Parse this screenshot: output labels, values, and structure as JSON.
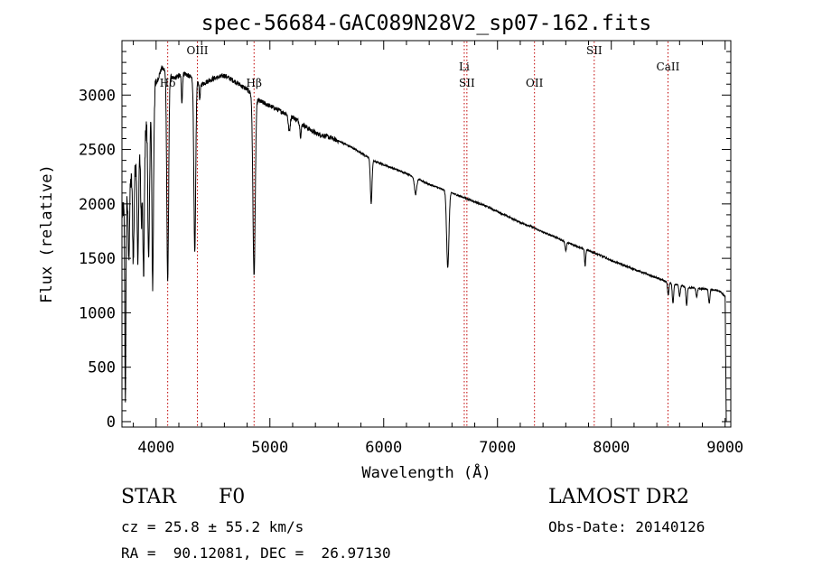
{
  "chart_data": {
    "type": "line",
    "title": "spec-56684-GAC089N28V2_sp07-162.fits",
    "xlabel": "Wavelength (Å)",
    "ylabel": "Flux (relative)",
    "xlim": [
      3700,
      9050
    ],
    "ylim": [
      -50,
      3500
    ],
    "xticks": [
      4000,
      5000,
      6000,
      7000,
      8000,
      9000
    ],
    "yticks": [
      0,
      500,
      1000,
      1500,
      2000,
      2500,
      3000
    ],
    "grid": false,
    "series": [
      {
        "name": "flux",
        "continuum": [
          [
            3700,
            1900
          ],
          [
            3760,
            2150
          ],
          [
            3820,
            2350
          ],
          [
            3880,
            2600
          ],
          [
            3950,
            2850
          ],
          [
            4000,
            3100
          ],
          [
            4050,
            3250
          ],
          [
            4150,
            3150
          ],
          [
            4250,
            3200
          ],
          [
            4400,
            3100
          ],
          [
            4500,
            3150
          ],
          [
            4600,
            3180
          ],
          [
            4700,
            3120
          ],
          [
            4800,
            3050
          ],
          [
            4900,
            2950
          ],
          [
            5000,
            2900
          ],
          [
            5100,
            2850
          ],
          [
            5200,
            2800
          ],
          [
            5300,
            2720
          ],
          [
            5400,
            2650
          ],
          [
            5500,
            2620
          ],
          [
            5600,
            2580
          ],
          [
            5700,
            2530
          ],
          [
            5800,
            2470
          ],
          [
            5900,
            2400
          ],
          [
            6000,
            2360
          ],
          [
            6100,
            2320
          ],
          [
            6200,
            2280
          ],
          [
            6300,
            2230
          ],
          [
            6400,
            2180
          ],
          [
            6500,
            2140
          ],
          [
            6600,
            2100
          ],
          [
            6700,
            2060
          ],
          [
            6800,
            2020
          ],
          [
            6900,
            1980
          ],
          [
            7000,
            1930
          ],
          [
            7100,
            1880
          ],
          [
            7200,
            1830
          ],
          [
            7300,
            1790
          ],
          [
            7400,
            1740
          ],
          [
            7500,
            1700
          ],
          [
            7600,
            1650
          ],
          [
            7700,
            1610
          ],
          [
            7800,
            1570
          ],
          [
            7900,
            1530
          ],
          [
            8000,
            1480
          ],
          [
            8100,
            1440
          ],
          [
            8200,
            1400
          ],
          [
            8300,
            1360
          ],
          [
            8400,
            1320
          ],
          [
            8500,
            1280
          ],
          [
            8600,
            1250
          ],
          [
            8700,
            1230
          ],
          [
            8800,
            1220
          ],
          [
            8900,
            1210
          ],
          [
            8950,
            1200
          ],
          [
            9000,
            1150
          ],
          [
            9010,
            0
          ]
        ],
        "absorption_lines": [
          {
            "center": 3730,
            "depth": 1800,
            "width": 5
          },
          {
            "center": 3760,
            "depth": 650,
            "width": 6
          },
          {
            "center": 3800,
            "depth": 800,
            "width": 6
          },
          {
            "center": 3840,
            "depth": 1000,
            "width": 6
          },
          {
            "center": 3870,
            "depth": 700,
            "width": 6
          },
          {
            "center": 3890,
            "depth": 1300,
            "width": 7
          },
          {
            "center": 3935,
            "depth": 1350,
            "width": 7
          },
          {
            "center": 3970,
            "depth": 1700,
            "width": 7
          },
          {
            "center": 4102,
            "depth": 1900,
            "width": 8
          },
          {
            "center": 4227,
            "depth": 250,
            "width": 5
          },
          {
            "center": 4340,
            "depth": 1600,
            "width": 8
          },
          {
            "center": 4384,
            "depth": 150,
            "width": 5
          },
          {
            "center": 4861,
            "depth": 1650,
            "width": 10
          },
          {
            "center": 5170,
            "depth": 150,
            "width": 8
          },
          {
            "center": 5270,
            "depth": 120,
            "width": 6
          },
          {
            "center": 5890,
            "depth": 400,
            "width": 7
          },
          {
            "center": 6280,
            "depth": 150,
            "width": 10
          },
          {
            "center": 6563,
            "depth": 700,
            "width": 10
          },
          {
            "center": 7600,
            "depth": 80,
            "width": 6
          },
          {
            "center": 7770,
            "depth": 150,
            "width": 5
          },
          {
            "center": 8500,
            "depth": 120,
            "width": 6
          },
          {
            "center": 8542,
            "depth": 180,
            "width": 6
          },
          {
            "center": 8600,
            "depth": 100,
            "width": 6
          },
          {
            "center": 8662,
            "depth": 170,
            "width": 6
          },
          {
            "center": 8750,
            "depth": 80,
            "width": 6
          },
          {
            "center": 8860,
            "depth": 130,
            "width": 6
          }
        ]
      }
    ],
    "line_markers": [
      {
        "label": "Hδ",
        "wavelength": 4102,
        "row": 2
      },
      {
        "label": "OIII",
        "wavelength": 4363,
        "row": 0
      },
      {
        "label": "Hβ",
        "wavelength": 4861,
        "row": 2
      },
      {
        "label": "Li",
        "wavelength": 6708,
        "row": 1
      },
      {
        "label": "SII",
        "wavelength": 6731,
        "row": 2
      },
      {
        "label": "OII",
        "wavelength": 7325,
        "row": 2
      },
      {
        "label": "SII",
        "wavelength": 7850,
        "row": 0
      },
      {
        "label": "CaII",
        "wavelength": 8498,
        "row": 1
      }
    ]
  },
  "info": {
    "object_class": "STAR",
    "subclass": "F0",
    "survey": "LAMOST DR2",
    "cz": "cz = 25.8 ± 55.2 km/s",
    "obs_date": "Obs-Date: 20140126",
    "coords": "RA =  90.12081, DEC =  26.97130"
  },
  "colors": {
    "spectrum": "#000000",
    "marker_line": "#c00000",
    "axis": "#000000"
  }
}
